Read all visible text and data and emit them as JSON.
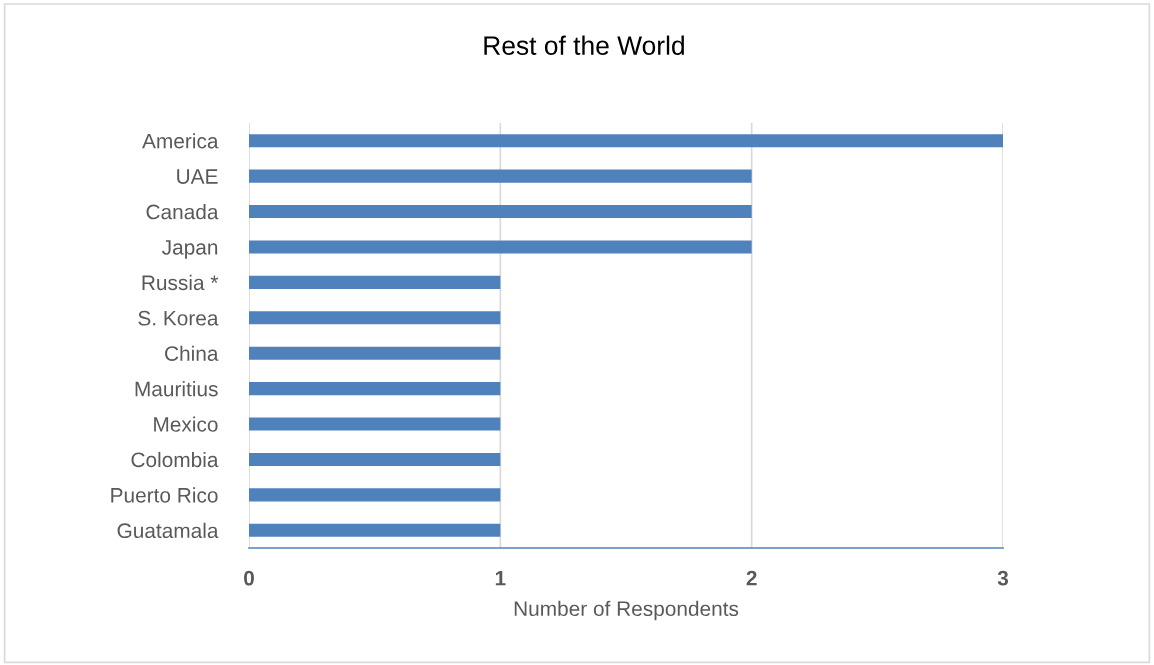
{
  "chart_data": {
    "type": "bar",
    "orientation": "horizontal",
    "title": "Rest of the World",
    "xlabel": "Number of Respondents",
    "categories": [
      "America",
      "UAE",
      "Canada",
      "Japan",
      "Russia *",
      "S. Korea",
      "China",
      "Mauritius",
      "Mexico",
      "Colombia",
      "Puerto Rico",
      "Guatamala"
    ],
    "values": [
      3,
      2,
      2,
      2,
      1,
      1,
      1,
      1,
      1,
      1,
      1,
      1
    ],
    "color": "#4f81bd",
    "xlim": [
      0,
      3
    ],
    "xticks": [
      0,
      1,
      2,
      3
    ],
    "grid": "x"
  }
}
